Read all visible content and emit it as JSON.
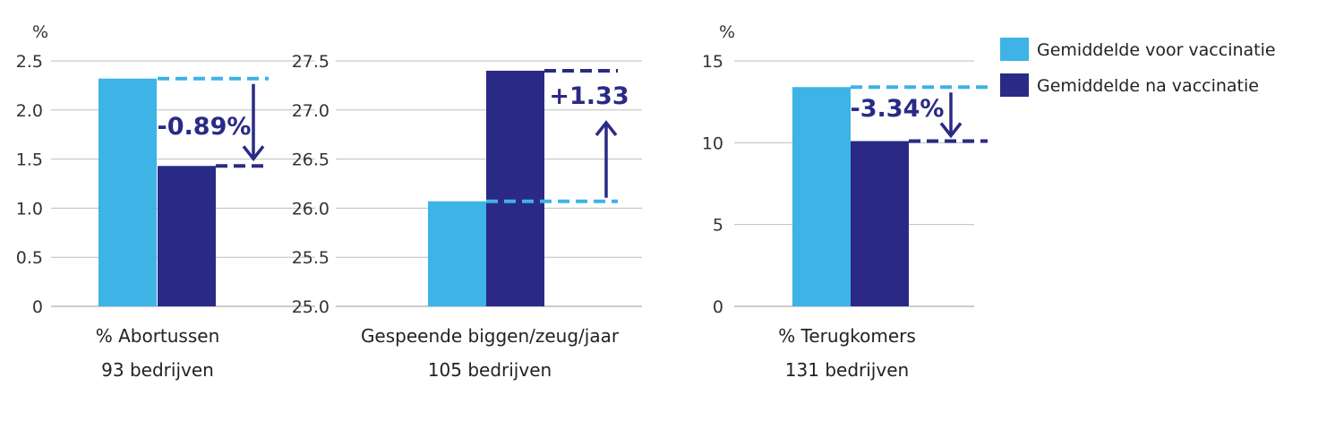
{
  "colors": {
    "before": "#3db3e6",
    "after": "#2a2a86",
    "grid": "#bdbdbd"
  },
  "legend": [
    {
      "label": "Gemiddelde voor vaccinatie",
      "color": "#3db3e6"
    },
    {
      "label": "Gemiddelde na vaccinatie",
      "color": "#2a2a86"
    }
  ],
  "chart_data": [
    {
      "type": "bar",
      "unit_label": "%",
      "ylim": [
        0,
        2.5
      ],
      "yticks": [
        "2.5",
        "2.0",
        "1.5",
        "1.0",
        "0.5",
        "0"
      ],
      "ytick_values": [
        2.5,
        2.0,
        1.5,
        1.0,
        0.5,
        0
      ],
      "grid": true,
      "series": [
        {
          "name": "Gemiddelde voor vaccinatie",
          "values": [
            2.32
          ]
        },
        {
          "name": "Gemiddelde na vaccinatie",
          "values": [
            1.43
          ]
        }
      ],
      "categories": [
        "% Abortussen"
      ],
      "sublabel": "93 bedrijven",
      "annotation": "-0.89%",
      "direction": "down"
    },
    {
      "type": "bar",
      "unit_label": "",
      "ylim": [
        25.0,
        27.5
      ],
      "yticks": [
        "27.5",
        "27.0",
        "26.5",
        "26.0",
        "25.5",
        "25.0"
      ],
      "ytick_values": [
        27.5,
        27.0,
        26.5,
        26.0,
        25.5,
        25.0
      ],
      "grid": true,
      "series": [
        {
          "name": "Gemiddelde voor vaccinatie",
          "values": [
            26.07
          ]
        },
        {
          "name": "Gemiddelde na vaccinatie",
          "values": [
            27.4
          ]
        }
      ],
      "categories": [
        "Gespeende biggen/zeug/jaar"
      ],
      "sublabel": "105 bedrijven",
      "annotation": "+1.33",
      "direction": "up"
    },
    {
      "type": "bar",
      "unit_label": "%",
      "ylim": [
        0,
        15
      ],
      "yticks": [
        "15",
        "10",
        "5",
        "0"
      ],
      "ytick_values": [
        15,
        10,
        5,
        0
      ],
      "grid": true,
      "series": [
        {
          "name": "Gemiddelde voor vaccinatie",
          "values": [
            13.4
          ]
        },
        {
          "name": "Gemiddelde na vaccinatie",
          "values": [
            10.1
          ]
        }
      ],
      "categories": [
        "% Terugkomers"
      ],
      "sublabel": "131 bedrijven",
      "annotation": "-3.34%",
      "direction": "down"
    }
  ]
}
